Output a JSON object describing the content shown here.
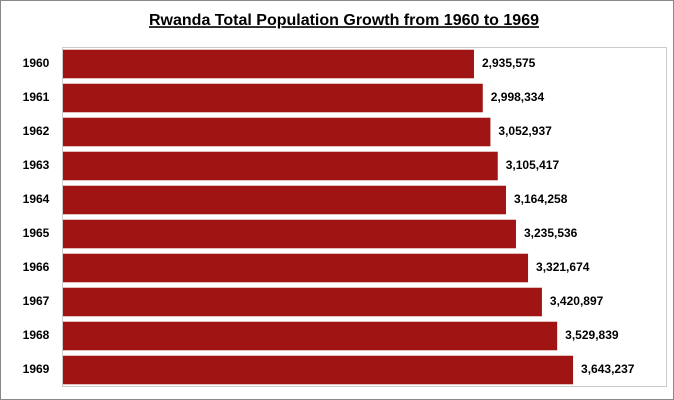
{
  "chart_data": {
    "type": "bar",
    "orientation": "horizontal",
    "title": "Rwanda Total Population Growth from 1960 to 1969",
    "categories": [
      "1960",
      "1961",
      "1962",
      "1963",
      "1964",
      "1965",
      "1966",
      "1967",
      "1968",
      "1969"
    ],
    "values": [
      2935575,
      2998334,
      3052937,
      3105417,
      3164258,
      3235536,
      3321674,
      3420897,
      3529839,
      3643237
    ],
    "value_labels": [
      "2,935,575",
      "2,998,334",
      "3,052,937",
      "3,105,417",
      "3,164,258",
      "3,235,536",
      "3,321,674",
      "3,420,897",
      "3,529,839",
      "3,643,237"
    ],
    "color": "#a01414",
    "xlim": [
      0,
      4300000
    ]
  }
}
